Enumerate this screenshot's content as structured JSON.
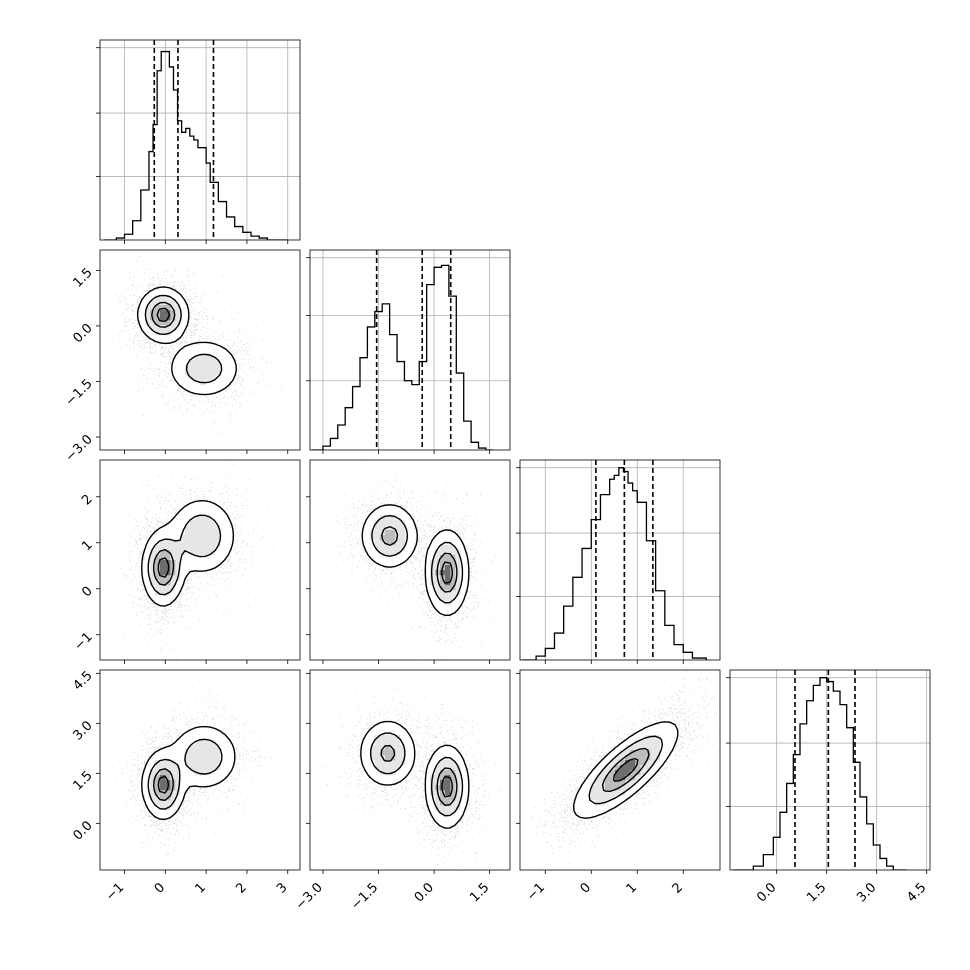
{
  "chart_data": {
    "type": "corner",
    "variables": [
      {
        "range": [
          -1.6,
          3.3
        ],
        "ticks": [
          -1,
          0,
          1,
          2,
          3
        ],
        "tick_labels": [
          "−1",
          "0",
          "1",
          "2",
          "3"
        ],
        "quantiles": [
          -0.27,
          0.31,
          1.18
        ],
        "hist_bins": [
          -1.5,
          -1.2,
          -1.0,
          -0.8,
          -0.6,
          -0.4,
          -0.3,
          -0.2,
          -0.1,
          0.0,
          0.1,
          0.2,
          0.3,
          0.4,
          0.5,
          0.6,
          0.7,
          0.8,
          1.0,
          1.1,
          1.3,
          1.5,
          1.7,
          1.9,
          2.1,
          2.3,
          2.5,
          2.7,
          3.0
        ],
        "hist_counts": [
          0.0,
          0.01,
          0.03,
          0.1,
          0.26,
          0.46,
          0.6,
          0.88,
          0.98,
          0.98,
          0.9,
          0.78,
          0.62,
          0.56,
          0.58,
          0.54,
          0.52,
          0.48,
          0.4,
          0.3,
          0.2,
          0.12,
          0.07,
          0.04,
          0.02,
          0.01,
          0.0,
          0.0
        ],
        "hist_ymax": 1.0,
        "hist_yticks": [
          0.33,
          0.66,
          1.0
        ]
      },
      {
        "range": [
          -3.35,
          2.05
        ],
        "ticks": [
          -3.0,
          -1.5,
          0.0,
          1.5
        ],
        "tick_labels": [
          "−3.0",
          "−1.5",
          "0.0",
          "1.5"
        ],
        "quantiles": [
          -1.55,
          -0.32,
          0.45
        ],
        "hist_bins": [
          -3.3,
          -3.0,
          -2.8,
          -2.6,
          -2.4,
          -2.2,
          -2.0,
          -1.8,
          -1.6,
          -1.4,
          -1.2,
          -1.0,
          -0.8,
          -0.6,
          -0.4,
          -0.2,
          0.0,
          0.2,
          0.4,
          0.6,
          0.8,
          1.0,
          1.2,
          1.4,
          1.6
        ],
        "hist_counts": [
          0.0,
          0.02,
          0.06,
          0.13,
          0.22,
          0.33,
          0.48,
          0.64,
          0.72,
          0.76,
          0.6,
          0.46,
          0.36,
          0.34,
          0.46,
          0.86,
          0.95,
          0.96,
          0.8,
          0.4,
          0.15,
          0.04,
          0.01,
          0.0
        ],
        "hist_ymax": 1.0,
        "hist_yticks": [
          0.36,
          0.7,
          1.0
        ]
      },
      {
        "range": [
          -1.55,
          2.8
        ],
        "ticks": [
          -1,
          0,
          1,
          2
        ],
        "tick_labels": [
          "−1",
          "0",
          "1",
          "2"
        ],
        "quantiles": [
          0.1,
          0.72,
          1.34
        ],
        "hist_bins": [
          -1.5,
          -1.2,
          -1.0,
          -0.8,
          -0.6,
          -0.4,
          -0.2,
          0.0,
          0.2,
          0.4,
          0.5,
          0.6,
          0.7,
          0.8,
          0.9,
          1.0,
          1.2,
          1.4,
          1.6,
          1.8,
          2.0,
          2.2,
          2.5
        ],
        "hist_counts": [
          0.0,
          0.02,
          0.06,
          0.14,
          0.28,
          0.43,
          0.58,
          0.73,
          0.86,
          0.94,
          0.96,
          1.0,
          0.98,
          0.92,
          0.88,
          0.82,
          0.62,
          0.36,
          0.18,
          0.08,
          0.04,
          0.01
        ],
        "hist_ymax": 1.0,
        "hist_yticks": [
          0.33,
          0.66,
          1.0
        ]
      },
      {
        "range": [
          -1.4,
          4.6
        ],
        "ticks": [
          0.0,
          1.5,
          3.0,
          4.5
        ],
        "tick_labels": [
          "0.0",
          "1.5",
          "3.0",
          "4.5"
        ],
        "quantiles": [
          0.55,
          1.55,
          2.35
        ],
        "hist_bins": [
          -1.3,
          -0.7,
          -0.4,
          -0.1,
          0.1,
          0.3,
          0.5,
          0.7,
          0.9,
          1.1,
          1.3,
          1.5,
          1.7,
          1.9,
          2.1,
          2.3,
          2.5,
          2.7,
          2.9,
          3.1,
          3.3,
          3.5,
          3.9
        ],
        "hist_counts": [
          0.0,
          0.02,
          0.08,
          0.17,
          0.3,
          0.45,
          0.6,
          0.76,
          0.88,
          0.96,
          1.0,
          0.98,
          0.93,
          0.86,
          0.74,
          0.56,
          0.38,
          0.24,
          0.13,
          0.06,
          0.02,
          0.0
        ],
        "hist_ymax": 1.0,
        "hist_yticks": [
          0.33,
          0.66,
          1.0
        ]
      }
    ],
    "pairs": [
      {
        "i": 1,
        "j": 0,
        "sigma": [
          0.36,
          0.28
        ],
        "components": [
          {
            "center": [
              -0.05,
              0.3
            ],
            "spread": [
              0.3,
              0.36
            ],
            "weight": 1.0
          },
          {
            "center": [
              0.95,
              -1.15
            ],
            "spread": [
              0.45,
              0.4
            ],
            "weight": 0.55
          }
        ],
        "contour_levels": [
          0.12,
          0.35,
          0.65,
          0.88
        ]
      },
      {
        "i": 2,
        "j": 0,
        "sigma": [
          0.36,
          0.3
        ],
        "components": [
          {
            "center": [
              -0.05,
              0.45
            ],
            "spread": [
              0.25,
              0.4
            ],
            "weight": 1.0
          },
          {
            "center": [
              0.9,
              1.15
            ],
            "spread": [
              0.42,
              0.42
            ],
            "weight": 0.62
          }
        ],
        "contour_levels": [
          0.12,
          0.35,
          0.65,
          0.88
        ]
      },
      {
        "i": 2,
        "j": 1,
        "sigma": [
          0.4,
          0.32
        ],
        "components": [
          {
            "center": [
              -1.2,
              1.15
            ],
            "spread": [
              0.38,
              0.35
            ],
            "weight": 0.75
          },
          {
            "center": [
              0.35,
              0.35
            ],
            "spread": [
              0.28,
              0.45
            ],
            "weight": 1.0
          }
        ],
        "contour_levels": [
          0.12,
          0.35,
          0.65,
          0.88
        ]
      },
      {
        "i": 3,
        "j": 0,
        "sigma": [
          0.36,
          0.55
        ],
        "components": [
          {
            "center": [
              -0.05,
              1.15
            ],
            "spread": [
              0.25,
              0.5
            ],
            "weight": 1.0
          },
          {
            "center": [
              0.95,
              2.0
            ],
            "spread": [
              0.42,
              0.5
            ],
            "weight": 0.6
          }
        ],
        "contour_levels": [
          0.12,
          0.35,
          0.65,
          0.88
        ]
      },
      {
        "i": 3,
        "j": 1,
        "sigma": [
          0.4,
          0.55
        ],
        "components": [
          {
            "center": [
              -1.25,
              2.1
            ],
            "spread": [
              0.38,
              0.5
            ],
            "weight": 0.72
          },
          {
            "center": [
              0.35,
              1.1
            ],
            "spread": [
              0.28,
              0.6
            ],
            "weight": 1.0
          }
        ],
        "contour_levels": [
          0.12,
          0.35,
          0.65,
          0.88
        ]
      },
      {
        "i": 3,
        "j": 2,
        "sigma": [
          0.33,
          0.55
        ],
        "components": [
          {
            "center": [
              0.75,
              1.6
            ],
            "spread": [
              0.55,
              0.7
            ],
            "weight": 1.0,
            "rho": 0.78
          }
        ],
        "contour_levels": [
          0.12,
          0.35,
          0.65,
          0.88
        ]
      }
    ],
    "grid": true,
    "colors": {
      "line": "#000000",
      "grid": "#b0b0b0",
      "points": "#808080"
    }
  }
}
